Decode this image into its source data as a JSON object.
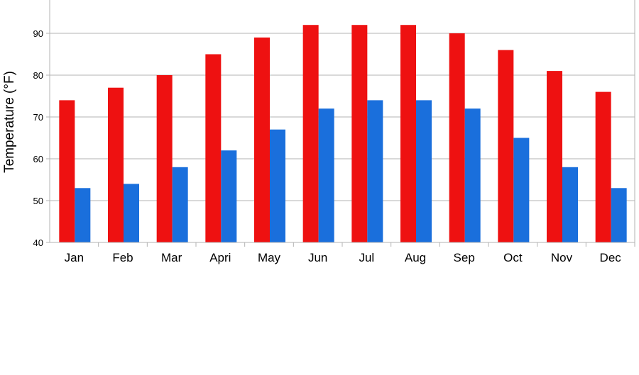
{
  "chart_data": {
    "type": "bar",
    "title": "",
    "xlabel": "",
    "ylabel": "Temperature (°F)",
    "ylim": [
      40,
      100
    ],
    "yticks": [
      40,
      50,
      60,
      70,
      80,
      90
    ],
    "grid": true,
    "categories": [
      "Jan",
      "Feb",
      "Mar",
      "Apri",
      "May",
      "Jun",
      "Jul",
      "Aug",
      "Sep",
      "Oct",
      "Nov",
      "Dec"
    ],
    "series": [
      {
        "values": [
          74,
          77,
          80,
          85,
          89,
          92,
          92,
          92,
          90,
          86,
          81,
          76
        ],
        "color": "#ee1111"
      },
      {
        "values": [
          53,
          54,
          58,
          62,
          67,
          72,
          74,
          74,
          72,
          65,
          58,
          53
        ],
        "color": "#1a6fdc"
      }
    ]
  }
}
